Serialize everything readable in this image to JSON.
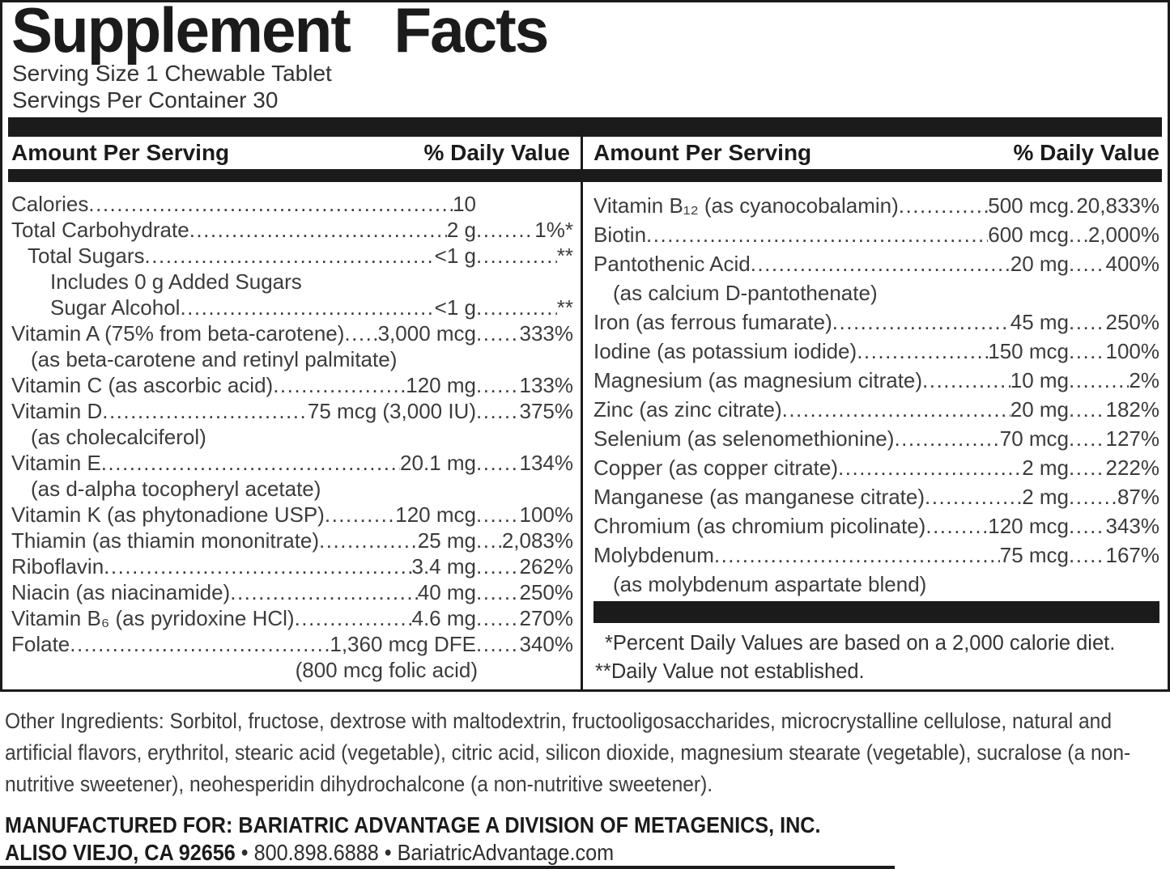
{
  "leader_dots": "....................................................................................................",
  "title": "Supplement Facts",
  "serving": {
    "size_line": "Serving Size 1 Chewable Tablet",
    "per_container_line": "Servings Per Container 30"
  },
  "table_header": {
    "amount_label": "Amount Per Serving",
    "dv_label": "% Daily Value"
  },
  "panel": {
    "left_rows": [
      {
        "label": "Calories",
        "amount": "10",
        "dv": ""
      },
      {
        "label": "Total Carbohydrate",
        "amount": "2 g",
        "dv": "1%*"
      },
      {
        "label": "Total Sugars",
        "amount": "<1 g",
        "dv": "**",
        "indent": 1
      },
      {
        "label": "Includes 0 g Added Sugars",
        "indent": 2
      },
      {
        "label": "Sugar Alcohol",
        "amount": "<1 g",
        "dv": "**",
        "indent": 2
      },
      {
        "label": "Vitamin A (75% from beta-carotene)",
        "amount": "3,000 mcg",
        "dv": "333%"
      },
      {
        "label": "(as beta-carotene and retinyl palmitate)",
        "sub": true
      },
      {
        "label": "Vitamin C (as ascorbic acid)",
        "amount": "120 mg",
        "dv": "133%"
      },
      {
        "label": "Vitamin D",
        "amount": "75 mcg (3,000 IU)",
        "dv": "375%"
      },
      {
        "label": "(as cholecalciferol)",
        "sub": true
      },
      {
        "label": "Vitamin E",
        "amount": "20.1 mg",
        "dv": "134%"
      },
      {
        "label": "(as d-alpha tocopheryl acetate)",
        "sub": true
      },
      {
        "label": "Vitamin K (as phytonadione USP)",
        "amount": "120 mcg",
        "dv": "100%"
      },
      {
        "label": "Thiamin (as thiamin mononitrate)",
        "amount": "25 mg",
        "dv": "2,083%"
      },
      {
        "label": "Riboflavin",
        "amount": "3.4 mg",
        "dv": "262%"
      },
      {
        "label": "Niacin (as niacinamide)",
        "amount": "40 mg",
        "dv": "250%"
      },
      {
        "label": "Vitamin B₆ (as pyridoxine HCl)",
        "amount": "4.6 mg",
        "dv": "270%"
      },
      {
        "label": "Folate",
        "amount": "1,360 mcg DFE",
        "dv": "340%"
      },
      {
        "label": "(800 mcg folic acid)",
        "sub": true,
        "align": "amount"
      }
    ],
    "right_rows": [
      {
        "label": "Vitamin B₁₂ (as cyanocobalamin)",
        "amount": "500 mcg",
        "dv": "20,833%"
      },
      {
        "label": "Biotin",
        "amount": "600 mcg",
        "dv": "2,000%"
      },
      {
        "label": "Pantothenic Acid",
        "amount": "20 mg",
        "dv": "400%"
      },
      {
        "label": "(as calcium D-pantothenate)",
        "sub": true
      },
      {
        "label": "Iron (as ferrous fumarate)",
        "amount": "45 mg",
        "dv": "250%"
      },
      {
        "label": "Iodine (as potassium iodide)",
        "amount": "150 mcg",
        "dv": "100%"
      },
      {
        "label": "Magnesium (as magnesium citrate)",
        "amount": "10 mg",
        "dv": "2%"
      },
      {
        "label": "Zinc (as zinc citrate)",
        "amount": "20 mg",
        "dv": "182%"
      },
      {
        "label": "Selenium (as selenomethionine)",
        "amount": "70 mcg",
        "dv": "127%"
      },
      {
        "label": "Copper (as copper citrate)",
        "amount": "2 mg",
        "dv": "222%"
      },
      {
        "label": "Manganese (as manganese citrate)",
        "amount": "2 mg",
        "dv": "87%"
      },
      {
        "label": "Chromium (as chromium picolinate)",
        "amount": "120 mcg",
        "dv": "343%"
      },
      {
        "label": "Molybdenum",
        "amount": "75 mcg",
        "dv": "167%"
      },
      {
        "label": "(as molybdenum aspartate blend)",
        "sub": true
      }
    ],
    "footnote1": "*Percent Daily Values are based on a 2,000 calorie diet.",
    "footnote2": "**Daily Value not established."
  },
  "other_ingredients": "Other Ingredients: Sorbitol, fructose, dextrose with maltodextrin, fructooligosaccharides, microcrystalline cellulose, natural and artificial flavors, erythritol, stearic acid (vegetable), citric acid, silicon dioxide, magnesium stearate (vegetable), sucralose (a non-nutritive sweetener), neohesperidin dihydrochalcone (a non-nutritive sweetener).",
  "manufacturer": {
    "line1": "MANUFACTURED FOR: BARIATRIC ADVANTAGE A DIVISION OF METAGENICS, INC.",
    "address": "ALISO VIEJO, CA 92656",
    "contact": " • 800.898.6888 • BariatricAdvantage.com"
  },
  "colors": {
    "ink": "#3c3c3c",
    "bar": "#1b1b1b",
    "background": "#ffffff"
  }
}
